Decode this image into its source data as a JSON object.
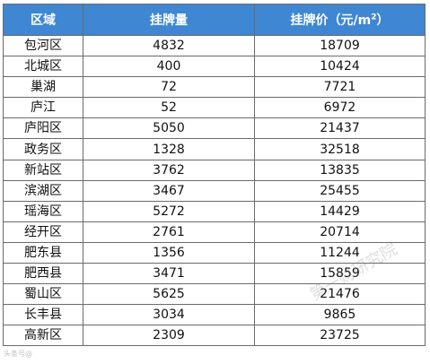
{
  "table": {
    "headers": {
      "region": "区域",
      "listings": "挂牌量",
      "price": "挂牌价",
      "price_unit_pre": "（元/m",
      "price_unit_sup": "2",
      "price_unit_post": "）"
    },
    "rows": [
      {
        "region": "包河区",
        "listings": "4832",
        "price": "18709"
      },
      {
        "region": "北城区",
        "listings": "400",
        "price": "10424"
      },
      {
        "region": "巢湖",
        "listings": "72",
        "price": "7721"
      },
      {
        "region": "庐江",
        "listings": "52",
        "price": "6972"
      },
      {
        "region": "庐阳区",
        "listings": "5050",
        "price": "21437"
      },
      {
        "region": "政务区",
        "listings": "1328",
        "price": "32518"
      },
      {
        "region": "新站区",
        "listings": "3762",
        "price": "13835"
      },
      {
        "region": "滨湖区",
        "listings": "3467",
        "price": "25455"
      },
      {
        "region": "瑶海区",
        "listings": "5272",
        "price": "14429"
      },
      {
        "region": "经开区",
        "listings": "2761",
        "price": "20714"
      },
      {
        "region": "肥东县",
        "listings": "1356",
        "price": "11244"
      },
      {
        "region": "肥西县",
        "listings": "3471",
        "price": "15859"
      },
      {
        "region": "蜀山区",
        "listings": "5625",
        "price": "21476"
      },
      {
        "region": "长丰县",
        "listings": "3034",
        "price": "9865"
      },
      {
        "region": "高新区",
        "listings": "2309",
        "price": "23725"
      }
    ]
  },
  "watermark": "第一财研究院",
  "corner_logo": "头条号@"
}
